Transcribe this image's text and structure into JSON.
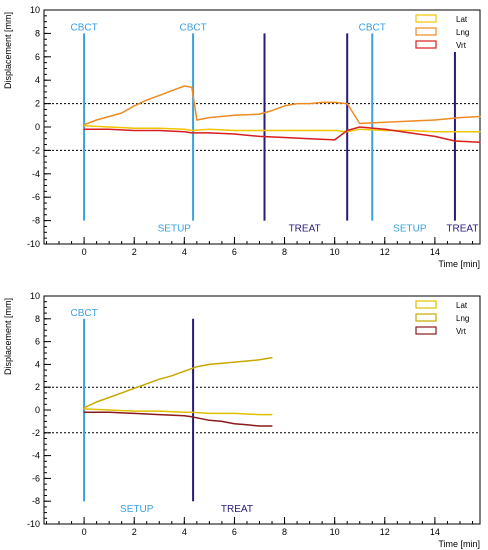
{
  "chart_data": [
    {
      "type": "line",
      "ylabel": "Displacement [mm]",
      "xlabel": "Time [min]",
      "xlim": [
        -1.6,
        15.8
      ],
      "ylim": [
        -10,
        10
      ],
      "x_ticks": [
        0,
        2,
        4,
        6,
        8,
        10,
        12,
        14
      ],
      "y_ticks": [
        -10,
        -8,
        -6,
        -4,
        -2,
        0,
        2,
        4,
        6,
        8,
        10
      ],
      "threshold_lines": [
        2,
        -2
      ],
      "legend_position": "top-right",
      "legend": [
        {
          "name": "Lat",
          "color": "#f2c400"
        },
        {
          "name": "Lng",
          "color": "#f08a24"
        },
        {
          "name": "Vrt",
          "color": "#d81e1e"
        }
      ],
      "series": [
        {
          "name": "Lat",
          "color": "#f2c400",
          "x": [
            0,
            1,
            2,
            3,
            4,
            4.3,
            5,
            6,
            7,
            8,
            9,
            10,
            10.5,
            11,
            12,
            13,
            14,
            15,
            15.8
          ],
          "values": [
            0.1,
            0.0,
            -0.1,
            -0.1,
            -0.2,
            -0.3,
            -0.2,
            -0.3,
            -0.3,
            -0.3,
            -0.3,
            -0.3,
            -0.4,
            -0.2,
            -0.3,
            -0.3,
            -0.4,
            -0.4,
            -0.4
          ]
        },
        {
          "name": "Lng",
          "color": "#f08a24",
          "x": [
            0,
            0.5,
            1,
            1.5,
            2,
            2.5,
            3,
            3.5,
            4,
            4.3,
            4.5,
            5,
            6,
            7,
            7.5,
            8,
            8.5,
            9,
            9.5,
            10,
            10.5,
            11,
            12,
            13,
            14,
            15,
            15.8
          ],
          "values": [
            0.2,
            0.6,
            0.9,
            1.2,
            1.8,
            2.3,
            2.7,
            3.1,
            3.5,
            3.4,
            0.6,
            0.8,
            1.0,
            1.1,
            1.4,
            1.8,
            2.0,
            2.0,
            2.1,
            2.1,
            2.0,
            0.3,
            0.4,
            0.5,
            0.6,
            0.8,
            0.9
          ]
        },
        {
          "name": "Vrt",
          "color": "#d81e1e",
          "x": [
            0,
            1,
            2,
            3,
            4,
            4.3,
            5,
            6,
            7,
            8,
            9,
            10,
            10.5,
            11,
            12,
            13,
            14,
            14.8,
            15.8
          ],
          "values": [
            -0.2,
            -0.2,
            -0.3,
            -0.3,
            -0.4,
            -0.5,
            -0.5,
            -0.6,
            -0.8,
            -0.9,
            -1.0,
            -1.1,
            -0.3,
            0.0,
            -0.2,
            -0.5,
            -0.8,
            -1.2,
            -1.3
          ]
        }
      ],
      "markers": [
        {
          "x": 0,
          "y_top": 8,
          "y_bottom": -8,
          "color": "#3aa0e0"
        },
        {
          "x": 4.35,
          "y_top": 8,
          "y_bottom": -8,
          "color": "#3aa0e0"
        },
        {
          "x": 7.2,
          "y_top": 8,
          "y_bottom": -8,
          "color": "#2a1a7a"
        },
        {
          "x": 10.5,
          "y_top": 8,
          "y_bottom": -8,
          "color": "#2a1a7a"
        },
        {
          "x": 11.5,
          "y_top": 8,
          "y_bottom": -8,
          "color": "#3aa0e0"
        },
        {
          "x": 14.8,
          "y_top": 8,
          "y_bottom": -8,
          "color": "#2a1a7a"
        }
      ],
      "annotations": [
        {
          "text": "CBCT",
          "x": 0,
          "y": 8.6,
          "color": "#3aa0e0"
        },
        {
          "text": "CBCT",
          "x": 4.35,
          "y": 8.6,
          "color": "#3aa0e0"
        },
        {
          "text": "CBCT",
          "x": 11.5,
          "y": 8.6,
          "color": "#3aa0e0"
        },
        {
          "text": "SETUP",
          "x": 3.6,
          "y": -8.6,
          "color": "#3aa0e0"
        },
        {
          "text": "TREAT",
          "x": 8.8,
          "y": -8.6,
          "color": "#2a1a7a"
        },
        {
          "text": "SETUP",
          "x": 13.0,
          "y": -8.6,
          "color": "#3aa0e0"
        },
        {
          "text": "TREAT",
          "x": 15.1,
          "y": -8.6,
          "color": "#2a1a7a"
        }
      ]
    },
    {
      "type": "line",
      "ylabel": "Displacement [mm]",
      "xlabel": "Time [min]",
      "xlim": [
        -1.6,
        15.8
      ],
      "ylim": [
        -10,
        10
      ],
      "x_ticks": [
        0,
        2,
        4,
        6,
        8,
        10,
        12,
        14
      ],
      "y_ticks": [
        -10,
        -8,
        -6,
        -4,
        -2,
        0,
        2,
        4,
        6,
        8,
        10
      ],
      "threshold_lines": [
        2,
        -2
      ],
      "legend_position": "top-right",
      "legend": [
        {
          "name": "Lat",
          "color": "#e0c000"
        },
        {
          "name": "Lng",
          "color": "#c8a800"
        },
        {
          "name": "Vrt",
          "color": "#8b1a1a"
        }
      ],
      "series": [
        {
          "name": "Lat",
          "color": "#e0c000",
          "x": [
            0,
            1,
            2,
            3,
            4,
            4.3,
            5,
            6,
            7,
            7.5
          ],
          "values": [
            0.1,
            0.0,
            -0.1,
            -0.1,
            -0.2,
            -0.2,
            -0.3,
            -0.3,
            -0.4,
            -0.4
          ]
        },
        {
          "name": "Lng",
          "color": "#c8a800",
          "x": [
            0,
            0.5,
            1,
            1.5,
            2,
            2.5,
            3,
            3.5,
            4,
            4.5,
            5,
            5.5,
            6,
            6.5,
            7,
            7.5
          ],
          "values": [
            0.2,
            0.7,
            1.1,
            1.5,
            1.9,
            2.3,
            2.7,
            3.0,
            3.4,
            3.8,
            4.0,
            4.1,
            4.2,
            4.3,
            4.4,
            4.6
          ]
        },
        {
          "name": "Vrt",
          "color": "#8b1a1a",
          "x": [
            0,
            1,
            2,
            3,
            4,
            4.3,
            5,
            5.5,
            6,
            6.5,
            7,
            7.5
          ],
          "values": [
            -0.2,
            -0.2,
            -0.3,
            -0.4,
            -0.5,
            -0.6,
            -0.9,
            -1.0,
            -1.2,
            -1.3,
            -1.4,
            -1.4
          ]
        }
      ],
      "markers": [
        {
          "x": 0,
          "y_top": 8,
          "y_bottom": -8,
          "color": "#3aa0e0"
        },
        {
          "x": 4.35,
          "y_top": 8,
          "y_bottom": -8,
          "color": "#2a1a7a"
        }
      ],
      "annotations": [
        {
          "text": "CBCT",
          "x": 0,
          "y": 8.6,
          "color": "#3aa0e0"
        },
        {
          "text": "SETUP",
          "x": 2.1,
          "y": -8.6,
          "color": "#3aa0e0"
        },
        {
          "text": "TREAT",
          "x": 6.1,
          "y": -8.6,
          "color": "#2a1a7a"
        }
      ]
    }
  ]
}
